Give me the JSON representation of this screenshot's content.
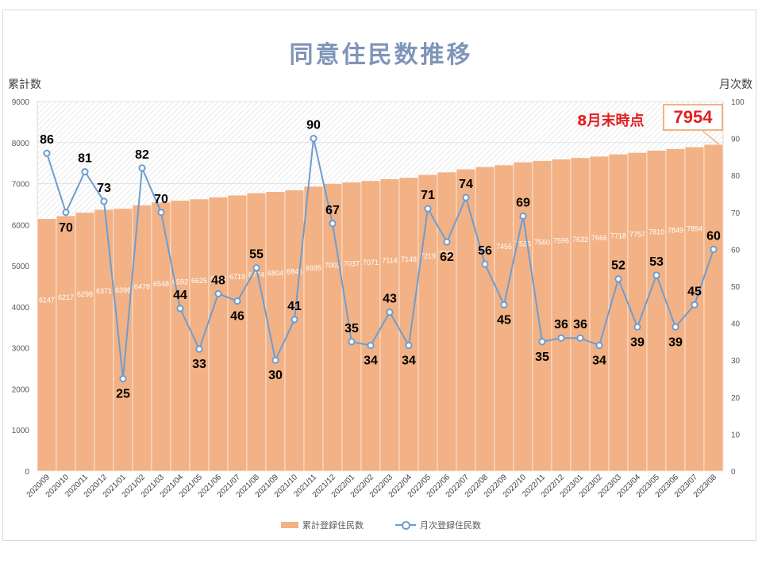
{
  "chart_data": {
    "type": "bar",
    "title": "同意住民数推移",
    "ylabel": "累計数",
    "y2label": "月次数",
    "ylim": [
      0,
      9000
    ],
    "y2lim": [
      0,
      100
    ],
    "yticks": [
      "0",
      "1000",
      "2000",
      "3000",
      "4000",
      "5000",
      "6000",
      "7000",
      "8000",
      "9000"
    ],
    "y2ticks": [
      "0",
      "10",
      "20",
      "30",
      "40",
      "50",
      "60",
      "70",
      "80",
      "90",
      "100"
    ],
    "categories": [
      "2020/09",
      "2020/10",
      "2020/11",
      "2020/12",
      "2021/01",
      "2021/02",
      "2021/03",
      "2021/04",
      "2021/05",
      "2021/06",
      "2021/07",
      "2021/08",
      "2021/09",
      "2021/10",
      "2021/11",
      "2021/12",
      "2022/01",
      "2022/02",
      "2022/03",
      "2022/04",
      "2022/05",
      "2022/06",
      "2022/07",
      "2022/08",
      "2022/09",
      "2022/10",
      "2022/11",
      "2022/12",
      "2023/01",
      "2023/02",
      "2023/03",
      "2023/04",
      "2023/05",
      "2023/06",
      "2023/07",
      "2023/08"
    ],
    "series": [
      {
        "name": "累計登録住民数",
        "type": "bar",
        "axis": "left",
        "color": "#f2b285",
        "values": [
          6147,
          6217,
          6298,
          6371,
          6396,
          6478,
          6548,
          6592,
          6625,
          6673,
          6719,
          6774,
          6804,
          6845,
          6935,
          7002,
          7037,
          7071,
          7114,
          7148,
          7219,
          7281,
          7355,
          7411,
          7456,
          7525,
          7560,
          7596,
          7632,
          7666,
          7718,
          7757,
          7810,
          7849,
          7894,
          7954
        ],
        "labels": [
          "6147",
          "6217",
          "6298",
          "6371",
          "6396",
          "6478",
          "6548",
          "6592",
          "6625",
          "6673",
          "6719",
          "6774",
          "6804",
          "6845",
          "6935",
          "7002",
          "7037",
          "7071",
          "7114",
          "7148",
          "7219",
          "7281",
          "",
          "7411",
          "7456",
          "7525",
          "7560",
          "7596",
          "7632",
          "7666",
          "7718",
          "7757",
          "7810",
          "7849",
          "7894",
          ""
        ]
      },
      {
        "name": "月次登録住民数",
        "type": "line",
        "axis": "right",
        "color": "#6e9dcf",
        "values": [
          86,
          70,
          81,
          73,
          25,
          82,
          70,
          44,
          33,
          48,
          46,
          55,
          30,
          41,
          90,
          67,
          35,
          34,
          43,
          34,
          71,
          62,
          74,
          56,
          45,
          69,
          35,
          36,
          36,
          34,
          52,
          39,
          53,
          39,
          45,
          60
        ]
      }
    ],
    "annotation": {
      "label": "8月末時点",
      "value": "7954"
    },
    "legend_position": "bottom"
  }
}
